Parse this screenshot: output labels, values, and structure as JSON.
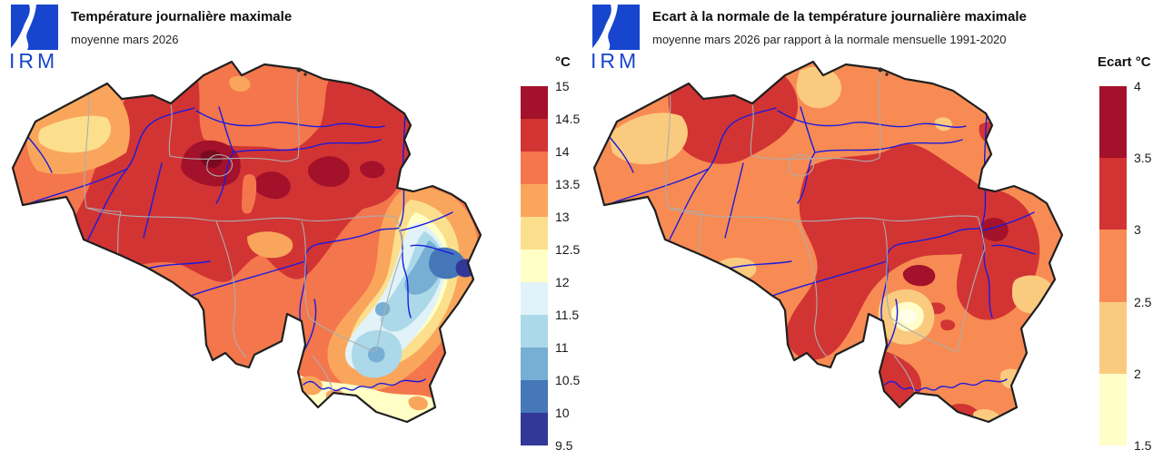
{
  "panels": [
    {
      "logo_text": "IRM",
      "title": "Température journalière maximale",
      "subtitle": "moyenne mars 2026",
      "legend": {
        "header": "°C",
        "labels": [
          "15",
          "14.5",
          "14",
          "13.5",
          "13",
          "12.5",
          "12",
          "11.5",
          "11",
          "10.5",
          "10",
          "9.5"
        ],
        "colors": [
          "#A3112A",
          "#D23434",
          "#F4764C",
          "#F9A65C",
          "#FBDF8D",
          "#FFFFC6",
          "#E1F3F8",
          "#ABD9E9",
          "#76AFD3",
          "#4577B9",
          "#323897"
        ]
      }
    },
    {
      "logo_text": "IRM",
      "title": "Ecart à la normale de la température journalière maximale",
      "subtitle": "moyenne mars 2026 par rapport à la normale mensuelle 1991-2020",
      "legend": {
        "header": "Ecart °C",
        "labels": [
          "4",
          "3.5",
          "3",
          "2.5",
          "2",
          "1.5"
        ],
        "colors": [
          "#A3112A",
          "#D23434",
          "#F88B53",
          "#FACB7E",
          "#FFFDC8"
        ]
      }
    }
  ],
  "map_style": {
    "country_border_color": "#1F1F1F",
    "province_border_color": "#ADADAD",
    "river_color": "#1A1AE0",
    "logo_color": "#1745CE",
    "extreme_hot_color": "#7A0A22",
    "left_base_color": "#F4764C",
    "right_base_color": "#F88B53",
    "cream_spot_color": "#FFFEE6"
  }
}
